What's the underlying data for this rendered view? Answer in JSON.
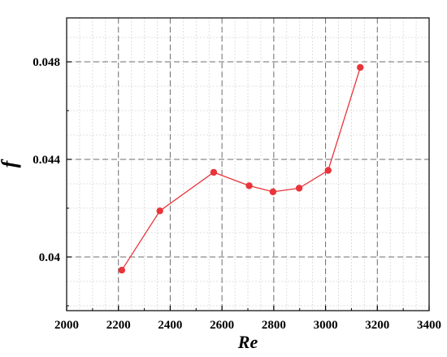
{
  "chart_data": {
    "type": "line",
    "title": "",
    "xlabel": "Re",
    "ylabel": "f",
    "xlim": [
      2000,
      3400
    ],
    "ylim": [
      0.0378,
      0.0498
    ],
    "x_ticks": [
      2000,
      2200,
      2400,
      2600,
      2800,
      3000,
      3200,
      3400
    ],
    "x_tick_labels": [
      "2000",
      "2200",
      "2400",
      "2600",
      "2800",
      "3000",
      "3200",
      "3400"
    ],
    "y_ticks": [
      0.04,
      0.044,
      0.048
    ],
    "y_tick_labels": [
      "0.04",
      "0.044",
      "0.048"
    ],
    "grid": true,
    "legend": "none",
    "series": [
      {
        "color": "#e8343a",
        "x": [
          2213,
          2360,
          2568,
          2705,
          2797,
          2898,
          3010,
          3134
        ],
        "y": [
          0.03946,
          0.04189,
          0.04347,
          0.04292,
          0.04267,
          0.04282,
          0.04355,
          0.04777
        ]
      }
    ]
  }
}
